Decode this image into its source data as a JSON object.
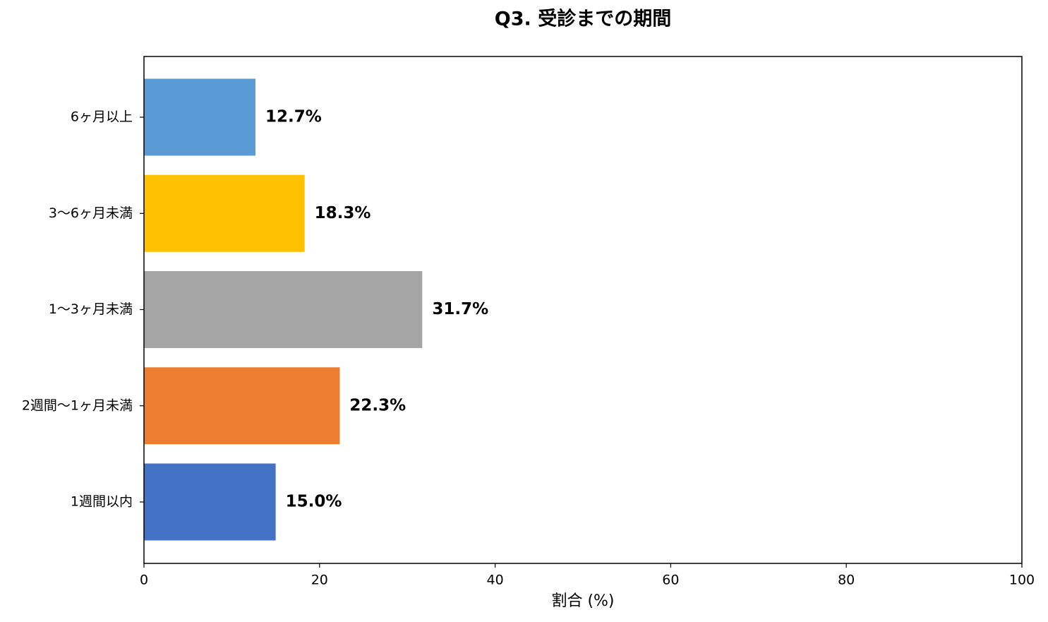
{
  "chart_data": {
    "type": "barh",
    "title": "Q3. 受診までの期間",
    "x_label": "割合 (%)",
    "categories": [
      "1週間以内",
      "2週間〜1ヶ月未満",
      "1〜3ヶ月未満",
      "3〜6ヶ月未満",
      "6ヶ月以上"
    ],
    "values": [
      15.0,
      22.3,
      31.7,
      18.3,
      12.7
    ],
    "value_labels": [
      "15.0%",
      "22.3%",
      "31.7%",
      "18.3%",
      "12.7%"
    ],
    "colors": [
      "#4472c4",
      "#ed7d31",
      "#a5a5a5",
      "#ffc000",
      "#5b9bd5"
    ],
    "xlim": [
      0,
      100
    ],
    "xticks": [
      0,
      20,
      40,
      60,
      80,
      100
    ],
    "grid": false
  }
}
